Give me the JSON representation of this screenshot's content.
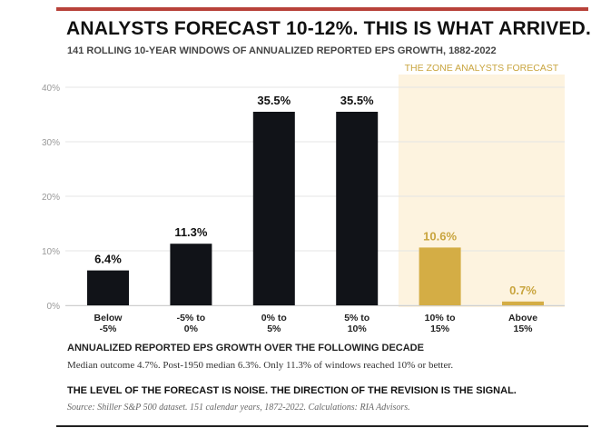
{
  "header": {
    "title": "ANALYSTS FORECAST 10-12%. THIS IS WHAT ARRIVED.",
    "subtitle": "141 ROLLING 10-YEAR WINDOWS OF ANNUALIZED REPORTED EPS GROWTH, 1882-2022"
  },
  "chart_data": {
    "type": "bar",
    "zone_label": "THE ZONE ANALYSTS FORECAST",
    "categories": [
      [
        "Below",
        "-5%"
      ],
      [
        "-5% to",
        "0%"
      ],
      [
        "0% to",
        "5%"
      ],
      [
        "5% to",
        "10%"
      ],
      [
        "10% to",
        "15%"
      ],
      [
        "Above",
        "15%"
      ]
    ],
    "values": [
      6.4,
      11.3,
      35.5,
      35.5,
      10.6,
      0.7
    ],
    "value_labels": [
      "6.4%",
      "11.3%",
      "35.5%",
      "35.5%",
      "10.6%",
      "0.7%"
    ],
    "ylim": [
      0,
      40
    ],
    "yticks": [
      0,
      10,
      20,
      30,
      40
    ],
    "ytick_labels": [
      "0%",
      "10%",
      "20%",
      "30%",
      "40%"
    ],
    "xlabel": "ANNUALIZED REPORTED EPS GROWTH OVER THE FOLLOWING DECADE",
    "highlight_from_index": 4,
    "colors": {
      "bar": "#111318",
      "highlight_bar": "#d4ad45",
      "highlight_label": "#c9a53f",
      "zone_bg": "#fdf3df",
      "zone_text": "#c9a53f",
      "grid": "#e4e4e4"
    },
    "grid": true
  },
  "notes": {
    "median": "Median outcome 4.7%. Post-1950 median 6.3%. Only 11.3% of windows reached 10% or better.",
    "signal": "THE LEVEL OF THE FORECAST IS NOISE. THE DIRECTION OF THE REVISION IS THE SIGNAL.",
    "source": "Source: Shiller S&P 500 dataset. 151 calendar years, 1872-2022. Calculations: RIA Advisors."
  }
}
